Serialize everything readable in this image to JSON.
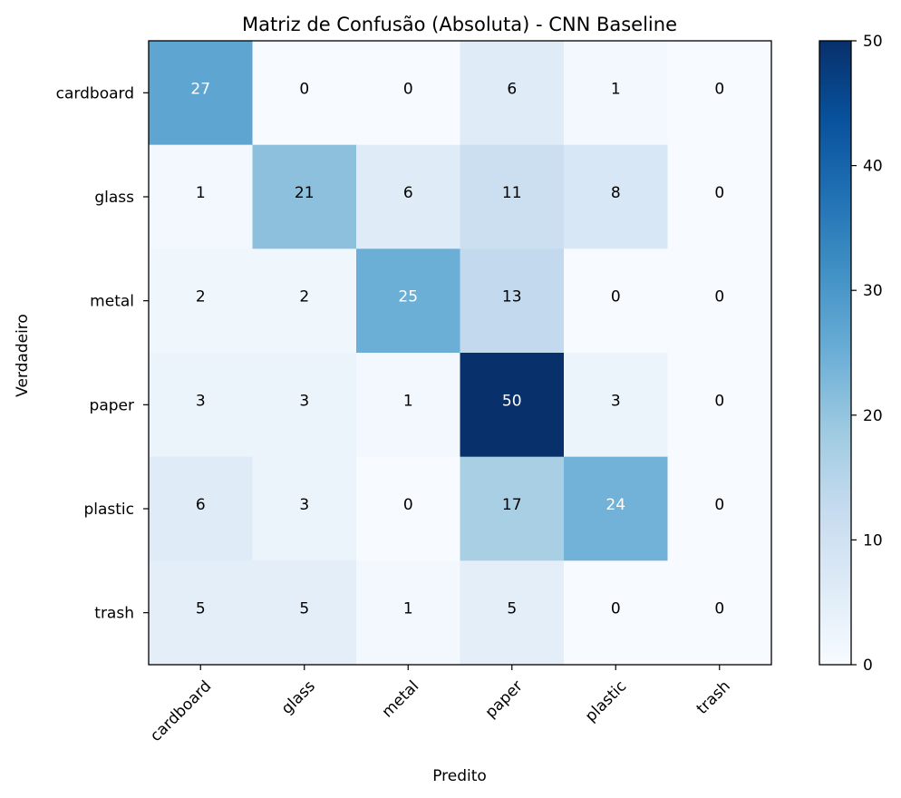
{
  "chart_data": {
    "type": "heatmap",
    "title": "Matriz de Confusão (Absoluta) - CNN Baseline",
    "xlabel": "Predito",
    "ylabel": "Verdadeiro",
    "x_categories": [
      "cardboard",
      "glass",
      "metal",
      "paper",
      "plastic",
      "trash"
    ],
    "y_categories": [
      "cardboard",
      "glass",
      "metal",
      "paper",
      "plastic",
      "trash"
    ],
    "values": [
      [
        27,
        0,
        0,
        6,
        1,
        0
      ],
      [
        1,
        21,
        6,
        11,
        8,
        0
      ],
      [
        2,
        2,
        25,
        13,
        0,
        0
      ],
      [
        3,
        3,
        1,
        50,
        3,
        0
      ],
      [
        6,
        3,
        0,
        17,
        24,
        0
      ],
      [
        5,
        5,
        1,
        5,
        0,
        0
      ]
    ],
    "colormap": "Blues",
    "vmin": 0,
    "vmax": 50,
    "colorbar_ticks": [
      0,
      10,
      20,
      30,
      40,
      50
    ]
  }
}
